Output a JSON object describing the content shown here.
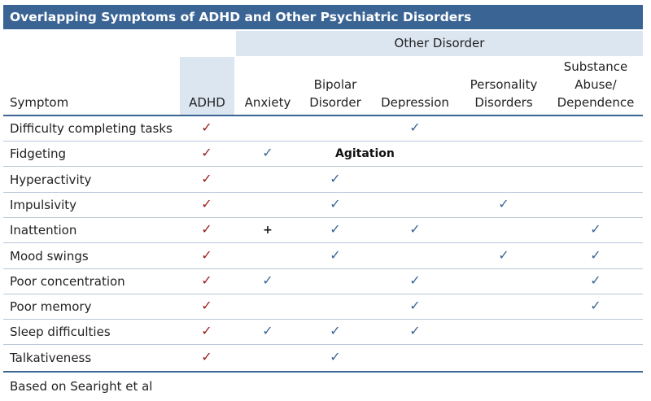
{
  "title": "Overlapping Symptoms of ADHD and Other Psychiatric Disorders",
  "group_header": "Other Disorder",
  "columns": [
    "Symptom",
    "ADHD",
    "Anxiety",
    "Bipolar\nDisorder",
    "Depression",
    "Personality\nDisorders",
    "Substance\nAbuse/\nDependence"
  ],
  "marks": {
    "check": "✓",
    "plus": "+"
  },
  "rows": [
    {
      "symptom": "Difficulty completing tasks",
      "cells": [
        "check",
        "",
        "",
        "check",
        "",
        ""
      ]
    },
    {
      "symptom": "Fidgeting",
      "cells": [
        "check",
        "check",
        "",
        "",
        "",
        ""
      ],
      "annotation": "Agitation"
    },
    {
      "symptom": "Hyperactivity",
      "cells": [
        "check",
        "",
        "check",
        "",
        "",
        ""
      ]
    },
    {
      "symptom": "Impulsivity",
      "cells": [
        "check",
        "",
        "check",
        "",
        "check",
        ""
      ]
    },
    {
      "symptom": "Inattention",
      "cells": [
        "check",
        "plus",
        "check",
        "check",
        "",
        "check"
      ]
    },
    {
      "symptom": "Mood swings",
      "cells": [
        "check",
        "",
        "check",
        "",
        "check",
        "check"
      ]
    },
    {
      "symptom": "Poor concentration",
      "cells": [
        "check",
        "check",
        "",
        "check",
        "",
        "check"
      ]
    },
    {
      "symptom": "Poor memory",
      "cells": [
        "check",
        "",
        "",
        "check",
        "",
        "check"
      ]
    },
    {
      "symptom": "Sleep difficulties",
      "cells": [
        "check",
        "check",
        "check",
        "check",
        "",
        ""
      ]
    },
    {
      "symptom": "Talkativeness",
      "cells": [
        "check",
        "",
        "check",
        "",
        "",
        ""
      ]
    }
  ],
  "footer": "Based on Searight et al",
  "colors": {
    "title_bg": "#3a6494",
    "band_bg": "#dce6f1",
    "adhd_check": "#9b1c1c",
    "other_check": "#3a6494"
  }
}
